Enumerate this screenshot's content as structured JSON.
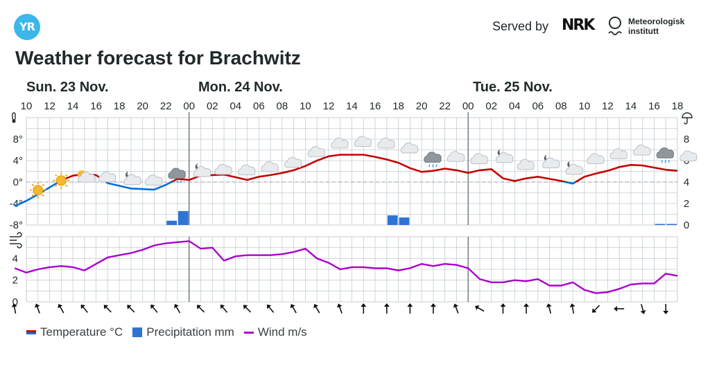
{
  "brand": {
    "logo_text": "YR",
    "served_by": "Served by",
    "nrk": "NRK",
    "met_line1": "Meteorologisk",
    "met_line2": "institutt"
  },
  "title": "Weather forecast for Brachwitz",
  "colors": {
    "temp_warm": "#c60000",
    "temp_cold": "#006edb",
    "precip": "#2e74d6",
    "wind": "#aa00cc",
    "grid": "#c5cdd2"
  },
  "chart_data": [
    {
      "type": "line",
      "days": [
        "Sun. 23 Nov.",
        "Mon. 24 Nov.",
        "Tue. 25 Nov."
      ],
      "hour_ticks": [
        "10",
        "12",
        "14",
        "16",
        "18",
        "20",
        "22",
        "00",
        "02",
        "04",
        "06",
        "08",
        "10",
        "12",
        "14",
        "16",
        "18",
        "20",
        "22",
        "00",
        "02",
        "04",
        "06",
        "08",
        "10",
        "12",
        "14",
        "16",
        "18"
      ],
      "x_start_hour": 10,
      "x_end_hour": 66,
      "ylim": [
        -8,
        12
      ],
      "y_ticks": [
        "8°",
        "4°",
        "0°",
        "-4°",
        "-8°"
      ],
      "y2lim": [
        0,
        10
      ],
      "y2_ticks": [
        "8",
        "6",
        "4",
        "2",
        "0"
      ],
      "grid": true,
      "series": [
        {
          "name": "Temperature °C",
          "x": [
            9,
            10,
            11,
            12,
            13,
            14,
            15,
            16,
            17,
            18,
            19,
            20,
            21,
            22,
            23,
            24,
            25,
            26,
            27,
            28,
            29,
            30,
            31,
            32,
            33,
            34,
            35,
            36,
            37,
            38,
            39,
            40,
            41,
            42,
            43,
            44,
            45,
            46,
            47,
            48,
            49,
            50,
            51,
            52,
            53,
            54,
            55,
            56,
            57,
            58,
            59,
            60,
            61,
            62,
            63,
            64,
            65,
            66
          ],
          "values": [
            -4.5,
            -3.5,
            -2.3,
            -1.0,
            0.3,
            1.2,
            1.5,
            1.3,
            -0.2,
            -0.7,
            -1.2,
            -1.3,
            -1.4,
            -0.5,
            0.6,
            0.4,
            1.2,
            1.3,
            1.4,
            0.9,
            0.4,
            1.0,
            1.3,
            1.7,
            2.2,
            3.0,
            4.0,
            4.8,
            5.1,
            5.1,
            5.1,
            4.7,
            4.2,
            3.6,
            2.6,
            1.9,
            2.1,
            2.5,
            2.2,
            1.7,
            2.2,
            2.4,
            0.7,
            0.2,
            0.7,
            1.0,
            0.6,
            0.2,
            -0.3,
            1.0,
            1.6,
            2.1,
            2.8,
            3.2,
            3.1,
            2.7,
            2.3,
            2.1
          ]
        },
        {
          "name": "Precipitation mm",
          "bars": [
            {
              "x": 22.5,
              "value": 0.4
            },
            {
              "x": 23.5,
              "value": 1.3
            },
            {
              "x": 41.5,
              "value": 0.9
            },
            {
              "x": 42.5,
              "value": 0.7
            },
            {
              "x": 64.5,
              "value": 0.1
            },
            {
              "x": 65.5,
              "value": 0.1
            }
          ]
        }
      ],
      "weather_icons": [
        {
          "x": 11,
          "icon": "sun",
          "temp": -1.0
        },
        {
          "x": 13,
          "icon": "sun",
          "temp": 0.8
        },
        {
          "x": 15,
          "icon": "sun-cloud",
          "temp": 1.4
        },
        {
          "x": 17,
          "icon": "cloud",
          "temp": 1.2
        },
        {
          "x": 19,
          "icon": "moon-cloud",
          "temp": 0.7
        },
        {
          "x": 21,
          "icon": "cloud",
          "temp": 0.6
        },
        {
          "x": 23,
          "icon": "snow",
          "temp": 1.6
        },
        {
          "x": 25,
          "icon": "moon-cloud",
          "temp": 2.2
        },
        {
          "x": 27,
          "icon": "cloud",
          "temp": 2.6
        },
        {
          "x": 29,
          "icon": "cloud",
          "temp": 2.5
        },
        {
          "x": 31,
          "icon": "cloud",
          "temp": 3.1
        },
        {
          "x": 33,
          "icon": "cloud",
          "temp": 3.9
        },
        {
          "x": 35,
          "icon": "cloud",
          "temp": 5.9
        },
        {
          "x": 37,
          "icon": "cloud",
          "temp": 7.5
        },
        {
          "x": 39,
          "icon": "cloud",
          "temp": 7.8
        },
        {
          "x": 41,
          "icon": "cloud",
          "temp": 7.5
        },
        {
          "x": 43,
          "icon": "cloud",
          "temp": 6.6
        },
        {
          "x": 45,
          "icon": "rain",
          "temp": 4.6
        },
        {
          "x": 47,
          "icon": "cloud",
          "temp": 5.0
        },
        {
          "x": 49,
          "icon": "cloud",
          "temp": 4.6
        },
        {
          "x": 51,
          "icon": "moon-cloud",
          "temp": 4.8
        },
        {
          "x": 53,
          "icon": "cloud",
          "temp": 3.5
        },
        {
          "x": 55,
          "icon": "moon-cloud",
          "temp": 3.8
        },
        {
          "x": 57,
          "icon": "moon-cloud",
          "temp": 2.6
        },
        {
          "x": 59,
          "icon": "cloud",
          "temp": 4.6
        },
        {
          "x": 61,
          "icon": "cloud",
          "temp": 5.5
        },
        {
          "x": 63,
          "icon": "cloud",
          "temp": 6.2
        },
        {
          "x": 65,
          "icon": "rain",
          "temp": 5.4
        },
        {
          "x": 67,
          "icon": "cloud",
          "temp": 5.1
        }
      ]
    },
    {
      "type": "line",
      "ylim": [
        0,
        6
      ],
      "y_ticks": [
        "4",
        "2",
        "0"
      ],
      "grid": true,
      "series": [
        {
          "name": "Wind m/s",
          "x": [
            9,
            10,
            11,
            12,
            13,
            14,
            15,
            16,
            17,
            18,
            19,
            20,
            21,
            22,
            23,
            24,
            25,
            26,
            27,
            28,
            29,
            30,
            31,
            32,
            33,
            34,
            35,
            36,
            37,
            38,
            39,
            40,
            41,
            42,
            43,
            44,
            45,
            46,
            47,
            48,
            49,
            50,
            51,
            52,
            53,
            54,
            55,
            56,
            57,
            58,
            59,
            60,
            61,
            62,
            63,
            64,
            65,
            66
          ],
          "values": [
            3.1,
            2.7,
            3.0,
            3.2,
            3.3,
            3.2,
            2.9,
            3.5,
            4.1,
            4.3,
            4.5,
            4.8,
            5.2,
            5.4,
            5.5,
            5.6,
            4.9,
            5.0,
            3.8,
            4.2,
            4.3,
            4.3,
            4.3,
            4.4,
            4.6,
            4.9,
            4.0,
            3.6,
            3.0,
            3.2,
            3.2,
            3.1,
            3.1,
            2.9,
            3.1,
            3.5,
            3.3,
            3.5,
            3.4,
            3.1,
            2.1,
            1.8,
            1.8,
            2.0,
            1.9,
            2.1,
            1.5,
            1.5,
            1.8,
            1.1,
            0.8,
            0.9,
            1.2,
            1.6,
            1.7,
            1.7,
            2.6,
            2.4
          ]
        }
      ]
    }
  ],
  "wind_arrows": [
    {
      "x": 9,
      "dir": 170
    },
    {
      "x": 11,
      "dir": 160
    },
    {
      "x": 13,
      "dir": 150
    },
    {
      "x": 15,
      "dir": 140
    },
    {
      "x": 17,
      "dir": 135
    },
    {
      "x": 19,
      "dir": 135
    },
    {
      "x": 21,
      "dir": 140
    },
    {
      "x": 23,
      "dir": 150
    },
    {
      "x": 25,
      "dir": 135
    },
    {
      "x": 27,
      "dir": 140
    },
    {
      "x": 29,
      "dir": 135
    },
    {
      "x": 31,
      "dir": 140
    },
    {
      "x": 33,
      "dir": 150
    },
    {
      "x": 35,
      "dir": 150
    },
    {
      "x": 37,
      "dir": 160
    },
    {
      "x": 39,
      "dir": 180
    },
    {
      "x": 41,
      "dir": 180
    },
    {
      "x": 43,
      "dir": 180
    },
    {
      "x": 45,
      "dir": 180
    },
    {
      "x": 47,
      "dir": 160
    },
    {
      "x": 49,
      "dir": 120
    },
    {
      "x": 51,
      "dir": 180
    },
    {
      "x": 53,
      "dir": 180
    },
    {
      "x": 55,
      "dir": 165
    },
    {
      "x": 57,
      "dir": 170
    },
    {
      "x": 59,
      "dir": 45
    },
    {
      "x": 61,
      "dir": 90
    },
    {
      "x": 63,
      "dir": 345
    },
    {
      "x": 65,
      "dir": 0
    }
  ],
  "legend": {
    "temperature": "Temperature °C",
    "precipitation": "Precipitation mm",
    "wind": "Wind m/s"
  }
}
